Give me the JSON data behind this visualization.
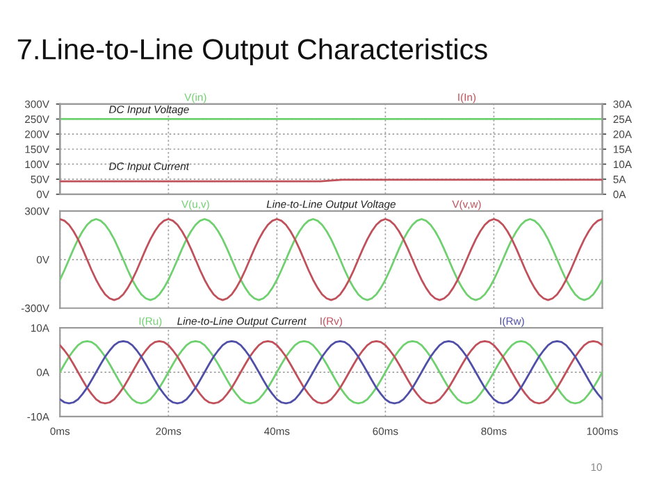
{
  "chart_data": [
    {
      "type": "line",
      "title": "7.Line-to-Line Output Characteristics",
      "x": [
        0,
        48,
        52,
        100
      ],
      "series": [
        {
          "name": "V(in)",
          "color": "#6fd06f",
          "values": [
            250,
            250,
            250,
            250
          ]
        },
        {
          "name": "I(In)",
          "color": "#c0505a",
          "axis": "y2",
          "values": [
            4.3,
            4.3,
            4.8,
            4.8
          ]
        }
      ],
      "xlim": [
        0,
        100
      ],
      "xticks": [
        0,
        20,
        40,
        60,
        80,
        100
      ],
      "ylim": [
        0,
        300
      ],
      "yticks": [
        {
          "value": 0,
          "label": "0V"
        },
        {
          "value": 50,
          "label": "50V"
        },
        {
          "value": 100,
          "label": "100V"
        },
        {
          "value": 150,
          "label": "150V"
        },
        {
          "value": 200,
          "label": "200V"
        },
        {
          "value": 250,
          "label": "250V"
        },
        {
          "value": 300,
          "label": "300V"
        }
      ],
      "y2lim": [
        0,
        30
      ],
      "y2ticks": [
        {
          "value": 0,
          "label": "0A"
        },
        {
          "value": 5,
          "label": "5A"
        },
        {
          "value": 10,
          "label": "10A"
        },
        {
          "value": 15,
          "label": "15A"
        },
        {
          "value": 20,
          "label": "20A"
        },
        {
          "value": 25,
          "label": "25A"
        },
        {
          "value": 30,
          "label": "30A"
        }
      ],
      "annotations": [
        "DC Input Voltage",
        "DC Input Current"
      ],
      "grid": true,
      "legend": "top",
      "tick_labels": "y"
    },
    {
      "type": "line",
      "x": [
        0,
        0.83,
        1.67,
        2.5,
        3.33,
        4.17,
        5,
        5.83,
        6.67,
        7.5,
        8.33,
        9.17,
        10,
        10.83,
        11.67,
        12.5,
        13.33,
        14.17,
        15,
        15.83,
        16.67,
        17.5,
        18.33,
        19.17,
        20,
        20.83,
        21.67,
        22.5,
        23.33,
        24.17,
        25,
        25.83,
        26.67,
        27.5,
        28.33,
        29.17,
        30,
        30.83,
        31.67,
        32.5,
        33.33,
        34.17,
        35,
        35.83,
        36.67,
        37.5,
        38.33,
        39.17,
        40,
        40.83,
        41.67,
        42.5,
        43.33,
        44.17,
        45,
        45.83,
        46.67,
        47.5,
        48.33,
        49.17,
        50,
        50.83,
        51.67,
        52.5,
        53.33,
        54.17,
        55,
        55.83,
        56.67,
        57.5,
        58.33,
        59.17,
        60,
        60.83,
        61.67,
        62.5,
        63.33,
        64.17,
        65,
        65.83,
        66.67,
        67.5,
        68.33,
        69.17,
        70,
        70.83,
        71.67,
        72.5,
        73.33,
        74.17,
        75,
        75.83,
        76.67,
        77.5,
        78.33,
        79.17,
        80,
        80.83,
        81.67,
        82.5,
        83.33,
        84.17,
        85,
        85.83,
        86.67,
        87.5,
        88.33,
        89.17,
        90,
        90.83,
        91.67,
        92.5,
        93.33,
        94.17,
        95,
        95.83,
        96.67,
        97.5,
        98.33,
        99.17,
        100
      ],
      "series": [
        {
          "name": "V(u,v)",
          "color": "#6fd06f",
          "values": [
            -125,
            -65,
            0,
            65,
            125,
            175,
            215,
            240,
            250,
            240,
            215,
            175,
            125,
            65,
            0,
            -65,
            -125,
            -175,
            -215,
            -240,
            -250,
            -240,
            -215,
            -175,
            -125,
            -65,
            0,
            65,
            125,
            175,
            215,
            240,
            250,
            240,
            215,
            175,
            125,
            65,
            0,
            -65,
            -125,
            -175,
            -215,
            -240,
            -250,
            -240,
            -215,
            -175,
            -125,
            -65,
            0,
            65,
            125,
            175,
            215,
            240,
            250,
            240,
            215,
            175,
            125,
            65,
            0,
            -65,
            -125,
            -175,
            -215,
            -240,
            -250,
            -240,
            -215,
            -175,
            -125,
            -65,
            0,
            65,
            125,
            175,
            215,
            240,
            250,
            240,
            215,
            175,
            125,
            65,
            0,
            -65,
            -125,
            -175,
            -215,
            -240,
            -250,
            -240,
            -215,
            -175,
            -125,
            -65,
            0,
            65,
            125,
            175,
            215,
            240,
            250,
            240,
            215,
            175,
            125,
            65,
            0,
            -65,
            -125,
            -175,
            -215,
            -240,
            -250,
            -240,
            -215,
            -175,
            -125
          ]
        },
        {
          "name": "V(v,w)",
          "color": "#c0505a",
          "values": [
            250,
            240,
            215,
            175,
            125,
            65,
            0,
            -65,
            -125,
            -175,
            -215,
            -240,
            -250,
            -240,
            -215,
            -175,
            -125,
            -65,
            0,
            65,
            125,
            175,
            215,
            240,
            250,
            240,
            215,
            175,
            125,
            65,
            0,
            -65,
            -125,
            -175,
            -215,
            -240,
            -250,
            -240,
            -215,
            -175,
            -125,
            -65,
            0,
            65,
            125,
            175,
            215,
            240,
            250,
            240,
            215,
            175,
            125,
            65,
            0,
            -65,
            -125,
            -175,
            -215,
            -240,
            -250,
            -240,
            -215,
            -175,
            -125,
            -65,
            0,
            65,
            125,
            175,
            215,
            240,
            250,
            240,
            215,
            175,
            125,
            65,
            0,
            -65,
            -125,
            -175,
            -215,
            -240,
            -250,
            -240,
            -215,
            -175,
            -125,
            -65,
            0,
            65,
            125,
            175,
            215,
            240,
            250,
            240,
            215,
            175,
            125,
            65,
            0,
            -65,
            -125,
            -175,
            -215,
            -240,
            -250,
            -240,
            -215,
            -175,
            -125,
            -65,
            0,
            65,
            125,
            175,
            215,
            240,
            250
          ]
        }
      ],
      "xlim": [
        0,
        100
      ],
      "xticks": [
        0,
        20,
        40,
        60,
        80,
        100
      ],
      "ylim": [
        -300,
        300
      ],
      "yticks": [
        {
          "value": -300,
          "label": "-300V"
        },
        {
          "value": 0,
          "label": "0V"
        },
        {
          "value": 300,
          "label": "300V"
        }
      ],
      "annotations": [
        "Line-to-Line Output Voltage"
      ],
      "grid": true,
      "legend": "top",
      "tick_labels": "y"
    },
    {
      "type": "line",
      "x": [
        0,
        0.83,
        1.67,
        2.5,
        3.33,
        4.17,
        5,
        5.83,
        6.67,
        7.5,
        8.33,
        9.17,
        10,
        10.83,
        11.67,
        12.5,
        13.33,
        14.17,
        15,
        15.83,
        16.67,
        17.5,
        18.33,
        19.17,
        20,
        20.83,
        21.67,
        22.5,
        23.33,
        24.17,
        25,
        25.83,
        26.67,
        27.5,
        28.33,
        29.17,
        30,
        30.83,
        31.67,
        32.5,
        33.33,
        34.17,
        35,
        35.83,
        36.67,
        37.5,
        38.33,
        39.17,
        40,
        40.83,
        41.67,
        42.5,
        43.33,
        44.17,
        45,
        45.83,
        46.67,
        47.5,
        48.33,
        49.17,
        50,
        50.83,
        51.67,
        52.5,
        53.33,
        54.17,
        55,
        55.83,
        56.67,
        57.5,
        58.33,
        59.17,
        60,
        60.83,
        61.67,
        62.5,
        63.33,
        64.17,
        65,
        65.83,
        66.67,
        67.5,
        68.33,
        69.17,
        70,
        70.83,
        71.67,
        72.5,
        73.33,
        74.17,
        75,
        75.83,
        76.67,
        77.5,
        78.33,
        79.17,
        80,
        80.83,
        81.67,
        82.5,
        83.33,
        84.17,
        85,
        85.83,
        86.67,
        87.5,
        88.33,
        89.17,
        90,
        90.83,
        91.67,
        92.5,
        93.33,
        94.17,
        95,
        95.83,
        96.67,
        97.5,
        98.33,
        99.17,
        100
      ],
      "series": [
        {
          "name": "I(Ru)",
          "color": "#6fd06f",
          "values": [
            0,
            1.8,
            3.5,
            4.9,
            6.1,
            6.8,
            7,
            6.8,
            6.1,
            4.9,
            3.5,
            1.8,
            0,
            -1.8,
            -3.5,
            -4.9,
            -6.1,
            -6.8,
            -7,
            -6.8,
            -6.1,
            -4.9,
            -3.5,
            -1.8,
            0,
            1.8,
            3.5,
            4.9,
            6.1,
            6.8,
            7,
            6.8,
            6.1,
            4.9,
            3.5,
            1.8,
            0,
            -1.8,
            -3.5,
            -4.9,
            -6.1,
            -6.8,
            -7,
            -6.8,
            -6.1,
            -4.9,
            -3.5,
            -1.8,
            0,
            1.8,
            3.5,
            4.9,
            6.1,
            6.8,
            7,
            6.8,
            6.1,
            4.9,
            3.5,
            1.8,
            0,
            -1.8,
            -3.5,
            -4.9,
            -6.1,
            -6.8,
            -7,
            -6.8,
            -6.1,
            -4.9,
            -3.5,
            -1.8,
            0,
            1.8,
            3.5,
            4.9,
            6.1,
            6.8,
            7,
            6.8,
            6.1,
            4.9,
            3.5,
            1.8,
            0,
            -1.8,
            -3.5,
            -4.9,
            -6.1,
            -6.8,
            -7,
            -6.8,
            -6.1,
            -4.9,
            -3.5,
            -1.8,
            0,
            1.8,
            3.5,
            4.9,
            6.1,
            6.8,
            7,
            6.8,
            6.1,
            4.9,
            3.5,
            1.8,
            0,
            -1.8,
            -3.5,
            -4.9,
            -6.1,
            -6.8,
            -7,
            -6.8,
            -6.1,
            -4.9,
            -3.5,
            -1.8,
            0
          ]
        },
        {
          "name": "I(Rv)",
          "color": "#c0505a",
          "values": [
            6.1,
            4.9,
            3.5,
            1.8,
            0,
            -1.8,
            -3.5,
            -4.9,
            -6.1,
            -6.8,
            -7,
            -6.8,
            -6.1,
            -4.9,
            -3.5,
            -1.8,
            0,
            1.8,
            3.5,
            4.9,
            6.1,
            6.8,
            7,
            6.8,
            6.1,
            4.9,
            3.5,
            1.8,
            0,
            -1.8,
            -3.5,
            -4.9,
            -6.1,
            -6.8,
            -7,
            -6.8,
            -6.1,
            -4.9,
            -3.5,
            -1.8,
            0,
            1.8,
            3.5,
            4.9,
            6.1,
            6.8,
            7,
            6.8,
            6.1,
            4.9,
            3.5,
            1.8,
            0,
            -1.8,
            -3.5,
            -4.9,
            -6.1,
            -6.8,
            -7,
            -6.8,
            -6.1,
            -4.9,
            -3.5,
            -1.8,
            0,
            1.8,
            3.5,
            4.9,
            6.1,
            6.8,
            7,
            6.8,
            6.1,
            4.9,
            3.5,
            1.8,
            0,
            -1.8,
            -3.5,
            -4.9,
            -6.1,
            -6.8,
            -7,
            -6.8,
            -6.1,
            -4.9,
            -3.5,
            -1.8,
            0,
            1.8,
            3.5,
            4.9,
            6.1,
            6.8,
            7,
            6.8,
            6.1,
            4.9,
            3.5,
            1.8,
            0,
            -1.8,
            -3.5,
            -4.9,
            -6.1,
            -6.8,
            -7,
            -6.8,
            -6.1,
            -4.9,
            -3.5,
            -1.8,
            0,
            1.8,
            3.5,
            4.9,
            6.1,
            6.8,
            7,
            6.8,
            6.1
          ]
        },
        {
          "name": "I(Rw)",
          "color": "#4f4fa8",
          "values": [
            -6.1,
            -6.8,
            -7,
            -6.8,
            -6.1,
            -4.9,
            -3.5,
            -1.8,
            0,
            1.8,
            3.5,
            4.9,
            6.1,
            6.8,
            7,
            6.8,
            6.1,
            4.9,
            3.5,
            1.8,
            0,
            -1.8,
            -3.5,
            -4.9,
            -6.1,
            -6.8,
            -7,
            -6.8,
            -6.1,
            -4.9,
            -3.5,
            -1.8,
            0,
            1.8,
            3.5,
            4.9,
            6.1,
            6.8,
            7,
            6.8,
            6.1,
            4.9,
            3.5,
            1.8,
            0,
            -1.8,
            -3.5,
            -4.9,
            -6.1,
            -6.8,
            -7,
            -6.8,
            -6.1,
            -4.9,
            -3.5,
            -1.8,
            0,
            1.8,
            3.5,
            4.9,
            6.1,
            6.8,
            7,
            6.8,
            6.1,
            4.9,
            3.5,
            1.8,
            0,
            -1.8,
            -3.5,
            -4.9,
            -6.1,
            -6.8,
            -7,
            -6.8,
            -6.1,
            -4.9,
            -3.5,
            -1.8,
            0,
            1.8,
            3.5,
            4.9,
            6.1,
            6.8,
            7,
            6.8,
            6.1,
            4.9,
            3.5,
            1.8,
            0,
            -1.8,
            -3.5,
            -4.9,
            -6.1,
            -6.8,
            -7,
            -6.8,
            -6.1,
            -4.9,
            -3.5,
            -1.8,
            0,
            1.8,
            3.5,
            4.9,
            6.1,
            6.8,
            7,
            6.8,
            6.1,
            4.9,
            3.5,
            1.8,
            0,
            -1.8,
            -3.5,
            -4.9,
            -6.1
          ]
        }
      ],
      "xlim": [
        0,
        100
      ],
      "xticks": [
        {
          "value": 0,
          "label": "0ms"
        },
        {
          "value": 20,
          "label": "20ms"
        },
        {
          "value": 40,
          "label": "40ms"
        },
        {
          "value": 60,
          "label": "60ms"
        },
        {
          "value": 80,
          "label": "80ms"
        },
        {
          "value": 100,
          "label": "100ms"
        }
      ],
      "ylim": [
        -10,
        10
      ],
      "yticks": [
        {
          "value": -10,
          "label": "-10A"
        },
        {
          "value": 0,
          "label": "0A"
        },
        {
          "value": 10,
          "label": "10A"
        }
      ],
      "annotations": [
        "Line-to-Line Output Current",
        "10"
      ],
      "grid": true,
      "legend": "top"
    }
  ]
}
